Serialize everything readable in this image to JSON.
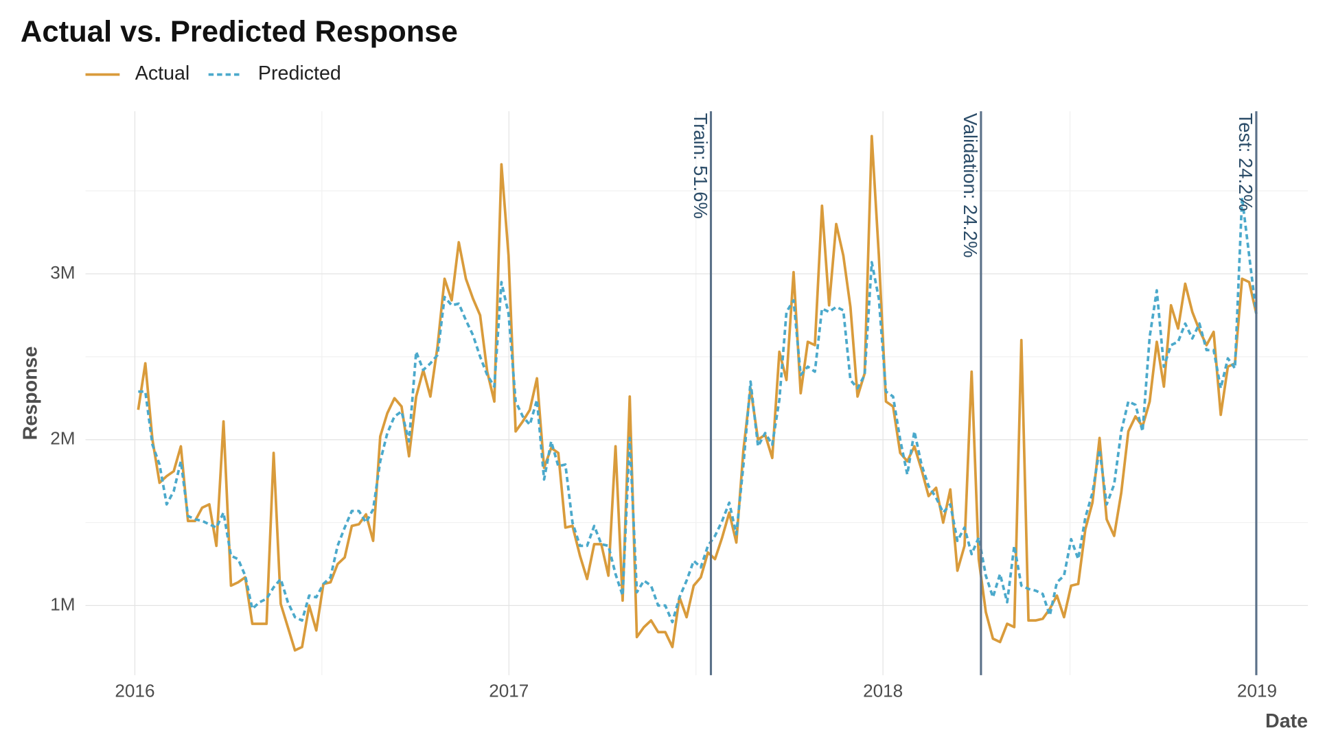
{
  "chart_data": {
    "type": "line",
    "title": "Actual vs. Predicted Response",
    "xlabel": "Date",
    "ylabel": "Response",
    "legend": "top-left",
    "x": [
      2016.009,
      2016.028,
      2016.047,
      2016.066,
      2016.085,
      2016.104,
      2016.123,
      2016.142,
      2016.161,
      2016.18,
      2016.199,
      2016.218,
      2016.237,
      2016.257,
      2016.276,
      2016.295,
      2016.314,
      2016.333,
      2016.352,
      2016.371,
      2016.39,
      2016.409,
      2016.428,
      2016.447,
      2016.466,
      2016.485,
      2016.504,
      2016.523,
      2016.542,
      2016.561,
      2016.58,
      2016.599,
      2016.618,
      2016.637,
      2016.656,
      2016.675,
      2016.694,
      2016.713,
      2016.733,
      2016.752,
      2016.771,
      2016.79,
      2016.809,
      2016.828,
      2016.847,
      2016.866,
      2016.885,
      2016.904,
      2016.923,
      2016.942,
      2016.961,
      2016.98,
      2016.999,
      2017.018,
      2017.037,
      2017.056,
      2017.075,
      2017.094,
      2017.113,
      2017.132,
      2017.151,
      2017.17,
      2017.19,
      2017.209,
      2017.228,
      2017.247,
      2017.266,
      2017.285,
      2017.304,
      2017.323,
      2017.342,
      2017.361,
      2017.38,
      2017.399,
      2017.418,
      2017.437,
      2017.456,
      2017.475,
      2017.494,
      2017.513,
      2017.532,
      2017.551,
      2017.57,
      2017.589,
      2017.608,
      2017.627,
      2017.646,
      2017.666,
      2017.685,
      2017.704,
      2017.723,
      2017.742,
      2017.761,
      2017.78,
      2017.799,
      2017.818,
      2017.837,
      2017.856,
      2017.875,
      2017.894,
      2017.913,
      2017.932,
      2017.951,
      2017.97,
      2017.989,
      2018.008,
      2018.027,
      2018.046,
      2018.065,
      2018.084,
      2018.103,
      2018.122,
      2018.142,
      2018.161,
      2018.18,
      2018.199,
      2018.218,
      2018.237,
      2018.256,
      2018.275,
      2018.294,
      2018.313,
      2018.332,
      2018.351,
      2018.37,
      2018.389,
      2018.408,
      2018.427,
      2018.446,
      2018.465,
      2018.484,
      2018.503,
      2018.522,
      2018.541,
      2018.56,
      2018.579,
      2018.598,
      2018.618,
      2018.637,
      2018.656,
      2018.675,
      2018.694,
      2018.713,
      2018.732,
      2018.751,
      2018.77,
      2018.789,
      2018.808,
      2018.827,
      2018.846,
      2018.865,
      2018.884,
      2018.903,
      2018.922,
      2018.941,
      2018.96,
      2018.979,
      2018.998
    ],
    "series": [
      {
        "name": "Actual",
        "color": "#d99b3b",
        "dash": "solid",
        "values": [
          2180000,
          2460000,
          2000000,
          1740000,
          1780000,
          1810000,
          1960000,
          1510000,
          1510000,
          1590000,
          1610000,
          1360000,
          2110000,
          1120000,
          1140000,
          1170000,
          890000,
          890000,
          890000,
          1920000,
          1010000,
          870000,
          730000,
          750000,
          1000000,
          850000,
          1130000,
          1140000,
          1250000,
          1290000,
          1480000,
          1490000,
          1550000,
          1390000,
          2020000,
          2160000,
          2250000,
          2200000,
          1900000,
          2260000,
          2420000,
          2260000,
          2560000,
          2970000,
          2840000,
          3190000,
          2970000,
          2850000,
          2750000,
          2410000,
          2230000,
          3660000,
          3110000,
          2050000,
          2110000,
          2180000,
          2370000,
          1830000,
          1950000,
          1920000,
          1470000,
          1480000,
          1300000,
          1160000,
          1370000,
          1370000,
          1180000,
          1960000,
          1030000,
          2260000,
          810000,
          870000,
          910000,
          840000,
          840000,
          750000,
          1050000,
          930000,
          1120000,
          1170000,
          1320000,
          1280000,
          1410000,
          1560000,
          1380000,
          1940000,
          2310000,
          2000000,
          2030000,
          1890000,
          2530000,
          2360000,
          3010000,
          2280000,
          2590000,
          2570000,
          3410000,
          2810000,
          3300000,
          3110000,
          2800000,
          2260000,
          2400000,
          3830000,
          3110000,
          2230000,
          2200000,
          1920000,
          1870000,
          1960000,
          1820000,
          1660000,
          1710000,
          1500000,
          1700000,
          1210000,
          1360000,
          2410000,
          1280000,
          960000,
          800000,
          780000,
          890000,
          870000,
          2600000,
          910000,
          910000,
          920000,
          980000,
          1060000,
          930000,
          1120000,
          1130000,
          1460000,
          1620000,
          2010000,
          1520000,
          1420000,
          1680000,
          2050000,
          2140000,
          2080000,
          2230000,
          2590000,
          2320000,
          2810000,
          2670000,
          2940000,
          2770000,
          2660000,
          2570000,
          2650000,
          2150000,
          2440000,
          2460000,
          2970000,
          2950000,
          2760000
        ]
      },
      {
        "name": "Predicted",
        "color": "#4ba9cb",
        "dash": "dashed",
        "values": [
          2290000,
          2290000,
          1970000,
          1850000,
          1610000,
          1690000,
          1870000,
          1540000,
          1520000,
          1510000,
          1490000,
          1470000,
          1560000,
          1300000,
          1280000,
          1180000,
          980000,
          1020000,
          1040000,
          1110000,
          1160000,
          1020000,
          930000,
          910000,
          1060000,
          1050000,
          1130000,
          1170000,
          1360000,
          1470000,
          1570000,
          1570000,
          1500000,
          1580000,
          1870000,
          2040000,
          2140000,
          2170000,
          1990000,
          2530000,
          2420000,
          2460000,
          2510000,
          2860000,
          2810000,
          2820000,
          2720000,
          2630000,
          2500000,
          2390000,
          2320000,
          2950000,
          2760000,
          2230000,
          2140000,
          2090000,
          2240000,
          1760000,
          1990000,
          1840000,
          1850000,
          1500000,
          1360000,
          1360000,
          1480000,
          1370000,
          1360000,
          1190000,
          1060000,
          2010000,
          1080000,
          1150000,
          1120000,
          1000000,
          1000000,
          900000,
          1050000,
          1150000,
          1270000,
          1230000,
          1360000,
          1420000,
          1510000,
          1620000,
          1430000,
          1850000,
          2350000,
          1960000,
          2040000,
          1970000,
          2240000,
          2770000,
          2840000,
          2390000,
          2440000,
          2410000,
          2790000,
          2770000,
          2800000,
          2780000,
          2360000,
          2310000,
          2390000,
          3070000,
          2850000,
          2290000,
          2260000,
          2000000,
          1790000,
          2050000,
          1850000,
          1720000,
          1650000,
          1560000,
          1610000,
          1390000,
          1470000,
          1310000,
          1410000,
          1180000,
          1050000,
          1190000,
          1020000,
          1360000,
          1120000,
          1100000,
          1090000,
          1070000,
          940000,
          1140000,
          1180000,
          1400000,
          1280000,
          1530000,
          1680000,
          1940000,
          1610000,
          1730000,
          2050000,
          2230000,
          2210000,
          2050000,
          2620000,
          2900000,
          2440000,
          2570000,
          2590000,
          2700000,
          2610000,
          2700000,
          2540000,
          2540000,
          2310000,
          2490000,
          2430000,
          3460000,
          3110000,
          2760000
        ]
      }
    ],
    "split_lines": [
      {
        "x": 2017.54,
        "label": "Train: 51.6%"
      },
      {
        "x": 2018.262,
        "label": "Validation: 24.2%"
      },
      {
        "x": 2018.998,
        "label": "Test: 24.2%"
      }
    ],
    "split_color": "#5b7189",
    "xlim": [
      2015.868,
      2019.136
    ],
    "xticks": [
      2016,
      2017,
      2018,
      2019
    ],
    "x_minor_ticks": [
      2016.5,
      2017.5,
      2018.5
    ],
    "ylim": [
      580000,
      3980000
    ],
    "yticks": [
      {
        "value": 1000000,
        "label": "1M"
      },
      {
        "value": 2000000,
        "label": "2M"
      },
      {
        "value": 3000000,
        "label": "3M"
      }
    ],
    "y_minor_ticks": [
      1500000,
      2500000,
      3500000
    ],
    "grid": true
  }
}
